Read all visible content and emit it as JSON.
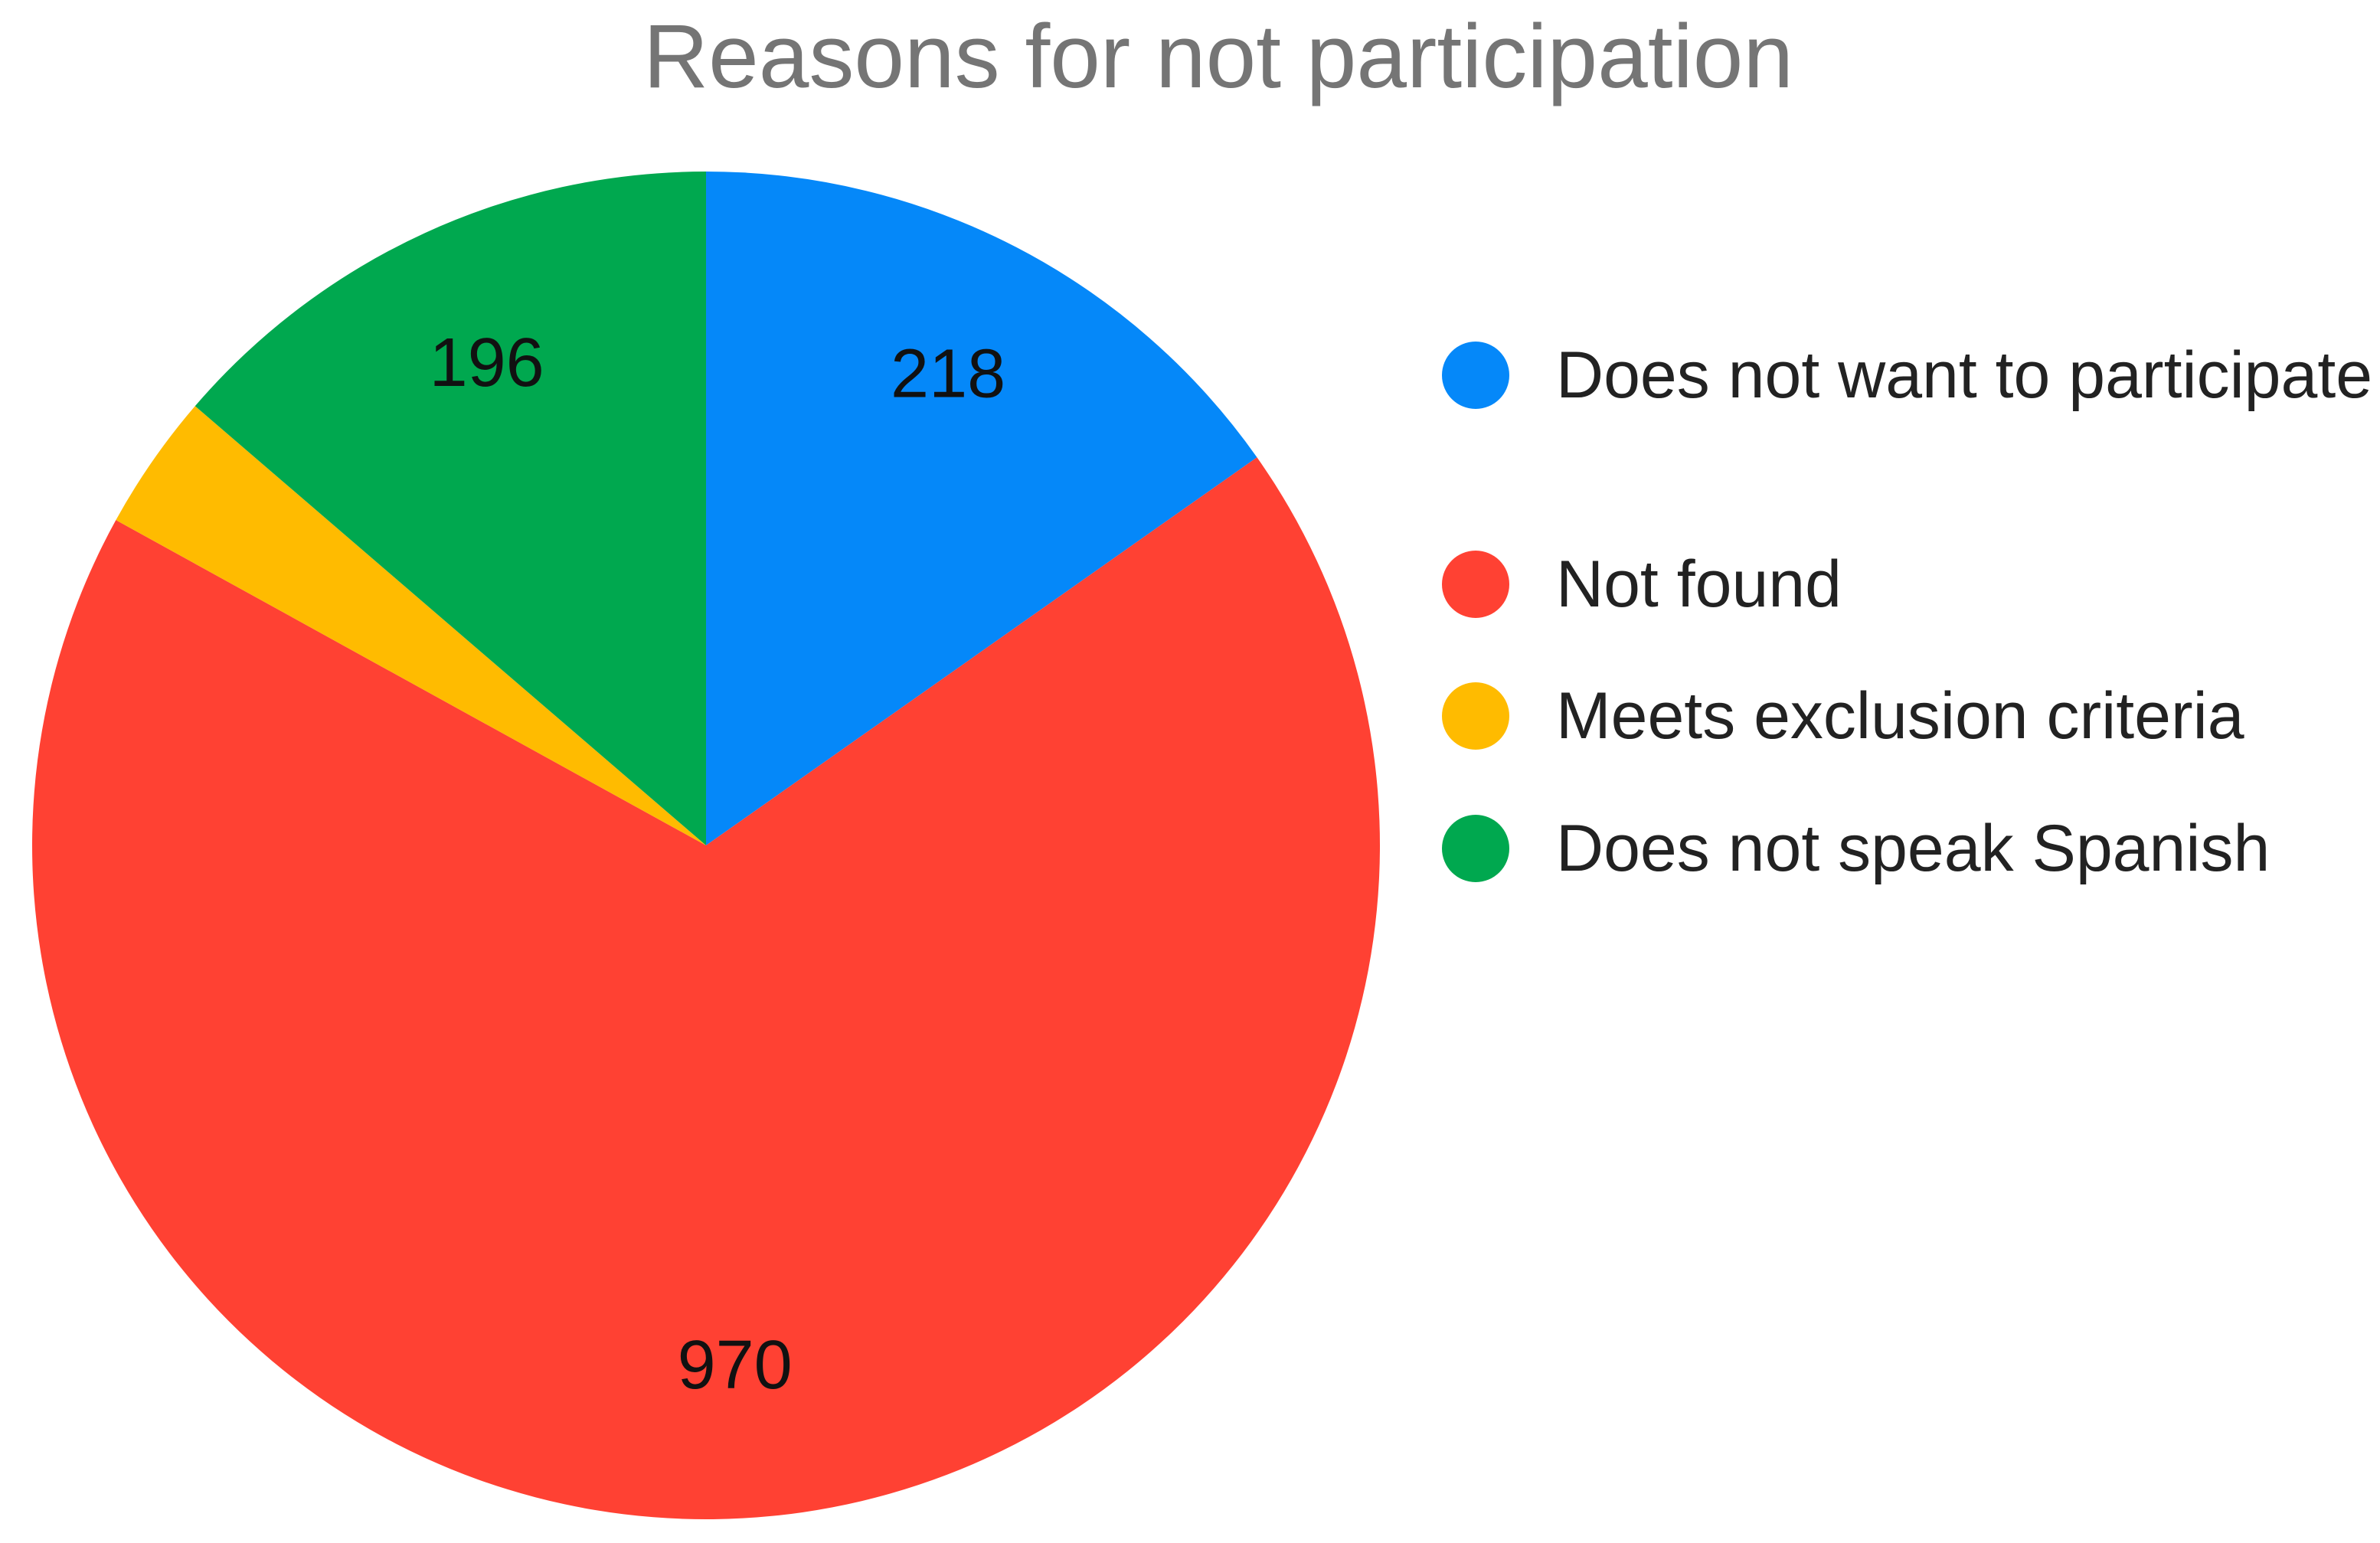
{
  "chart_data": {
    "type": "pie",
    "title": "Reasons for not participation",
    "categories": [
      "Does not want to participate",
      "Not found",
      "Meets exclusion criteria",
      "Does not speak Spanish"
    ],
    "values": [
      218,
      970,
      47,
      196
    ],
    "value_labels": [
      "218",
      "970",
      null,
      "196"
    ],
    "colors": [
      "#0588f9",
      "#ff4133",
      "#ffbb00",
      "#00a84f"
    ],
    "start_angle": 0,
    "direction": "clockwise",
    "legend": "right"
  }
}
